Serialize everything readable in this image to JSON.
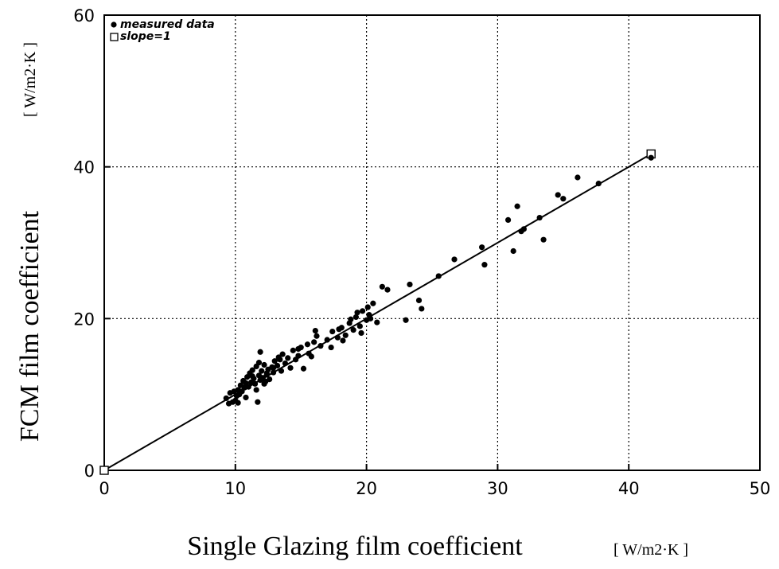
{
  "chart_data": {
    "type": "scatter",
    "title": "",
    "xlabel": "Single Glazing film coefficient",
    "ylabel": "FCM film coefficient",
    "xunit": "[ W/m2·K ]",
    "yunit": "[ W/m2·K ]",
    "xlim": [
      0,
      50
    ],
    "ylim": [
      0,
      60
    ],
    "xticks": [
      "0",
      "10",
      "20",
      "30",
      "40",
      "50"
    ],
    "yticks": [
      "0",
      "20",
      "40",
      "60"
    ],
    "grid": true,
    "legend_position": "top-left",
    "series": [
      {
        "name": "measured data",
        "marker": "filled-circle",
        "x": [
          9.3,
          9.5,
          9.6,
          9.8,
          9.9,
          10.0,
          10.1,
          10.2,
          10.3,
          10.4,
          10.5,
          10.6,
          10.7,
          10.8,
          10.9,
          11.0,
          11.1,
          11.2,
          11.3,
          11.4,
          11.5,
          11.6,
          11.7,
          11.8,
          11.9,
          12.0,
          12.1,
          12.2,
          12.3,
          12.4,
          12.5,
          12.6,
          12.8,
          12.9,
          13.0,
          13.2,
          13.3,
          13.5,
          13.6,
          13.8,
          14.0,
          14.2,
          14.4,
          14.6,
          14.8,
          15.0,
          15.2,
          15.5,
          15.8,
          16.0,
          16.2,
          16.5,
          17.0,
          17.4,
          17.8,
          18.1,
          18.4,
          18.7,
          19.0,
          19.2,
          19.5,
          19.7,
          20.0,
          20.2,
          20.5,
          20.8,
          21.2,
          21.6,
          23.0,
          23.3,
          24.0,
          24.2,
          25.5,
          26.7,
          28.8,
          29.0,
          30.8,
          31.2,
          31.5,
          31.8,
          32.0,
          33.2,
          33.5,
          34.6,
          35.0,
          36.1,
          37.7,
          41.7,
          11.6,
          11.8,
          12.2,
          12.4,
          12.9,
          13.4,
          14.8,
          15.6,
          16.1,
          17.3,
          17.9,
          18.2,
          18.8,
          19.3,
          19.6,
          20.1,
          20.3,
          10.2,
          10.8,
          11.3,
          11.9
        ],
        "y": [
          9.5,
          8.8,
          10.2,
          9.0,
          10.4,
          9.2,
          9.8,
          10.6,
          10.0,
          11.2,
          10.4,
          11.8,
          10.9,
          11.5,
          12.3,
          11.0,
          12.8,
          11.6,
          13.2,
          12.1,
          11.4,
          13.7,
          9.0,
          12.5,
          11.9,
          13.1,
          12.2,
          13.9,
          11.7,
          12.6,
          13.3,
          12.0,
          13.6,
          12.9,
          14.4,
          13.8,
          14.9,
          13.1,
          15.3,
          14.1,
          14.8,
          13.5,
          15.8,
          14.6,
          15.1,
          16.2,
          13.4,
          16.6,
          15.0,
          16.9,
          17.7,
          16.4,
          17.2,
          18.3,
          17.5,
          18.8,
          17.8,
          19.4,
          18.5,
          20.2,
          19.0,
          21.0,
          19.8,
          20.5,
          22.0,
          19.5,
          24.2,
          23.8,
          19.8,
          24.5,
          22.4,
          21.3,
          25.6,
          27.8,
          29.4,
          27.1,
          33.0,
          28.9,
          34.8,
          31.5,
          31.8,
          33.3,
          30.4,
          36.3,
          35.8,
          38.6,
          37.8,
          41.2,
          10.6,
          14.2,
          11.4,
          12.8,
          13.5,
          14.6,
          16.0,
          15.4,
          18.4,
          16.2,
          18.6,
          17.1,
          19.9,
          20.8,
          18.1,
          21.5,
          20.0,
          8.9,
          9.6,
          12.4,
          15.6
        ]
      },
      {
        "name": "slope=1",
        "marker": "open-square",
        "x": [
          0,
          41.7
        ],
        "y": [
          0,
          41.7
        ]
      }
    ]
  }
}
